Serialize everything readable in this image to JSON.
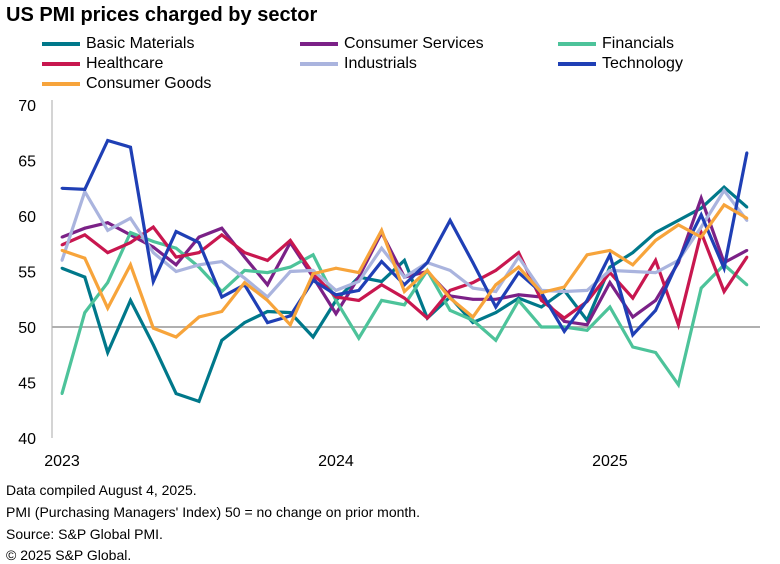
{
  "chart_data": {
    "type": "line",
    "title": "US PMI prices charged by sector",
    "xlabel": "",
    "ylabel": "",
    "ylim": [
      40,
      70
    ],
    "yticks": [
      "40",
      "45",
      "50",
      "55",
      "60",
      "65",
      "70"
    ],
    "xtick_labels": [
      "2023",
      "2024",
      "2025"
    ],
    "x": [
      "Jan 2023",
      "Feb 2023",
      "Mar 2023",
      "Apr 2023",
      "May 2023",
      "Jun 2023",
      "Jul 2023",
      "Aug 2023",
      "Sep 2023",
      "Oct 2023",
      "Nov 2023",
      "Dec 2023",
      "Jan 2024",
      "Feb 2024",
      "Mar 2024",
      "Apr 2024",
      "May 2024",
      "Jun 2024",
      "Jul 2024",
      "Aug 2024",
      "Sep 2024",
      "Oct 2024",
      "Nov 2024",
      "Dec 2024",
      "Jan 2025",
      "Feb 2025",
      "Mar 2025",
      "Apr 2025",
      "May 2025",
      "Jun 2025",
      "Jul 2025"
    ],
    "reference_line": 50,
    "grid": false,
    "legend_position": "top",
    "series": [
      {
        "name": "Basic Materials",
        "color": "#00788a",
        "values": [
          55.3,
          54.5,
          47.7,
          52.4,
          48.4,
          44.0,
          43.3,
          48.8,
          50.4,
          51.4,
          51.3,
          49.1,
          52.4,
          54.5,
          54.1,
          56.0,
          50.8,
          52.7,
          50.4,
          51.3,
          52.6,
          51.8,
          53.3,
          50.6,
          55.4,
          56.7,
          58.5,
          59.6,
          60.7,
          62.6,
          60.8
        ]
      },
      {
        "name": "Consumer Services",
        "color": "#7b2187",
        "values": [
          58.1,
          58.9,
          59.4,
          58.3,
          57.2,
          55.6,
          58.1,
          58.9,
          56.3,
          53.8,
          57.6,
          54.5,
          51.2,
          54.5,
          58.5,
          54.5,
          55.0,
          52.8,
          52.5,
          52.5,
          52.9,
          52.7,
          50.5,
          50.2,
          54.0,
          50.9,
          52.4,
          55.8,
          61.6,
          55.8,
          56.9
        ]
      },
      {
        "name": "Financials",
        "color": "#4dc39a",
        "values": [
          44.0,
          51.3,
          54.0,
          58.5,
          57.7,
          57.1,
          55.4,
          53.2,
          55.1,
          54.9,
          55.4,
          56.5,
          52.4,
          49.0,
          52.4,
          52.0,
          55.1,
          51.5,
          50.6,
          48.8,
          52.4,
          50.0,
          50.0,
          49.7,
          51.8,
          48.2,
          47.7,
          44.8,
          53.5,
          55.6,
          53.8
        ]
      },
      {
        "name": "Healthcare",
        "color": "#c8174f",
        "values": [
          57.4,
          58.3,
          56.7,
          57.6,
          59.0,
          56.3,
          56.7,
          58.3,
          56.7,
          56.0,
          57.8,
          54.8,
          52.7,
          52.4,
          53.8,
          52.6,
          50.8,
          53.3,
          54.0,
          55.1,
          56.7,
          52.4,
          50.8,
          52.3,
          54.9,
          52.6,
          56.0,
          50.2,
          58.5,
          53.2,
          56.3
        ]
      },
      {
        "name": "Industrials",
        "color": "#aab4de",
        "values": [
          56.0,
          62.2,
          58.7,
          59.8,
          56.7,
          55.0,
          55.6,
          55.9,
          54.4,
          52.7,
          55.0,
          55.1,
          53.3,
          54.1,
          57.1,
          54.5,
          55.8,
          55.1,
          53.5,
          53.2,
          56.3,
          53.3,
          53.2,
          53.3,
          55.1,
          55.0,
          54.9,
          56.0,
          59.0,
          62.3,
          59.6
        ]
      },
      {
        "name": "Technology",
        "color": "#1f3fb5",
        "values": [
          62.5,
          62.4,
          66.8,
          66.2,
          54.1,
          58.6,
          57.6,
          52.7,
          53.8,
          50.4,
          51.0,
          54.2,
          52.9,
          53.3,
          55.9,
          53.8,
          55.8,
          59.6,
          55.8,
          51.8,
          54.9,
          53.1,
          49.6,
          52.4,
          56.5,
          49.3,
          51.5,
          56.0,
          60.1,
          55.3,
          65.7
        ]
      },
      {
        "name": "Consumer Goods",
        "color": "#f7a43b",
        "values": [
          56.9,
          56.2,
          51.7,
          55.6,
          49.9,
          49.1,
          50.9,
          51.4,
          54.0,
          52.4,
          50.2,
          54.8,
          55.3,
          54.9,
          58.7,
          53.2,
          55.1,
          52.6,
          50.9,
          53.8,
          55.4,
          53.1,
          53.6,
          56.5,
          56.9,
          55.6,
          57.8,
          59.2,
          58.1,
          61.0,
          59.8
        ]
      }
    ]
  },
  "notes": [
    "Data compiled August 4, 2025.",
    "PMI (Purchasing Managers' Index) 50 =  no change on prior month.",
    "Source: S&P Global PMI.",
    "© 2025 S&P Global."
  ]
}
